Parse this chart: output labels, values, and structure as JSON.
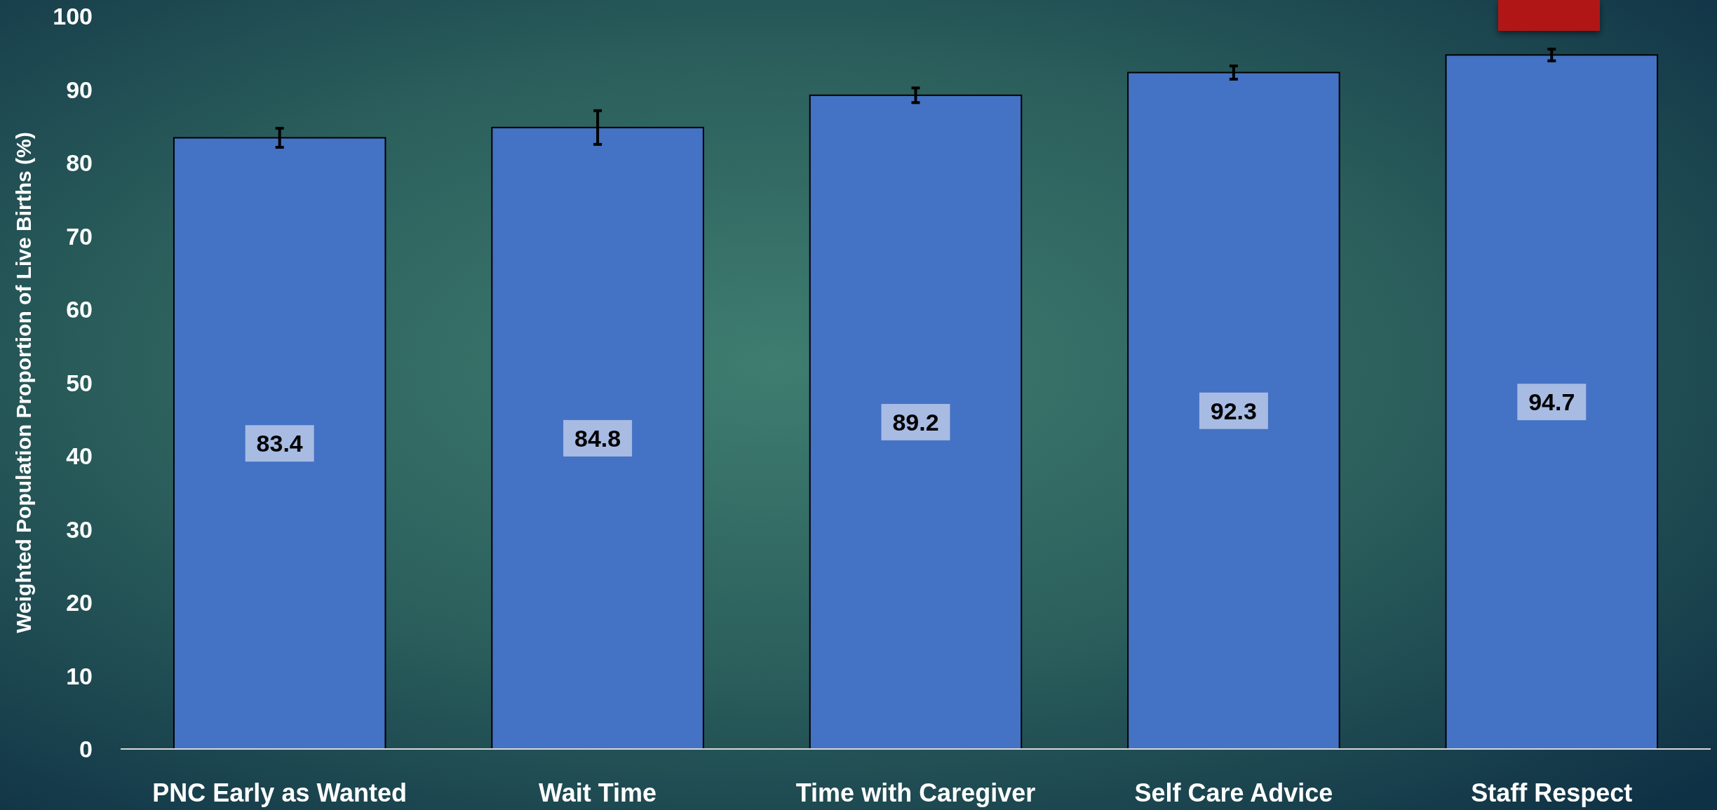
{
  "chart_data": {
    "type": "bar",
    "ylabel": "Weighted Population Proportion of Live Births (%)",
    "categories": [
      "PNC Early as Wanted",
      "Wait Time",
      "Time with Caregiver",
      "Self Care Advice",
      "Staff Respect"
    ],
    "values": [
      83.4,
      84.8,
      89.2,
      92.3,
      94.7
    ],
    "errors": [
      1.3,
      2.3,
      1.0,
      0.9,
      0.8
    ],
    "color": "#4472c4",
    "ylim": [
      0,
      100
    ],
    "yticks": [
      0,
      10,
      20,
      30,
      40,
      50,
      60,
      70,
      80,
      90,
      100
    ],
    "data_labels": true
  }
}
